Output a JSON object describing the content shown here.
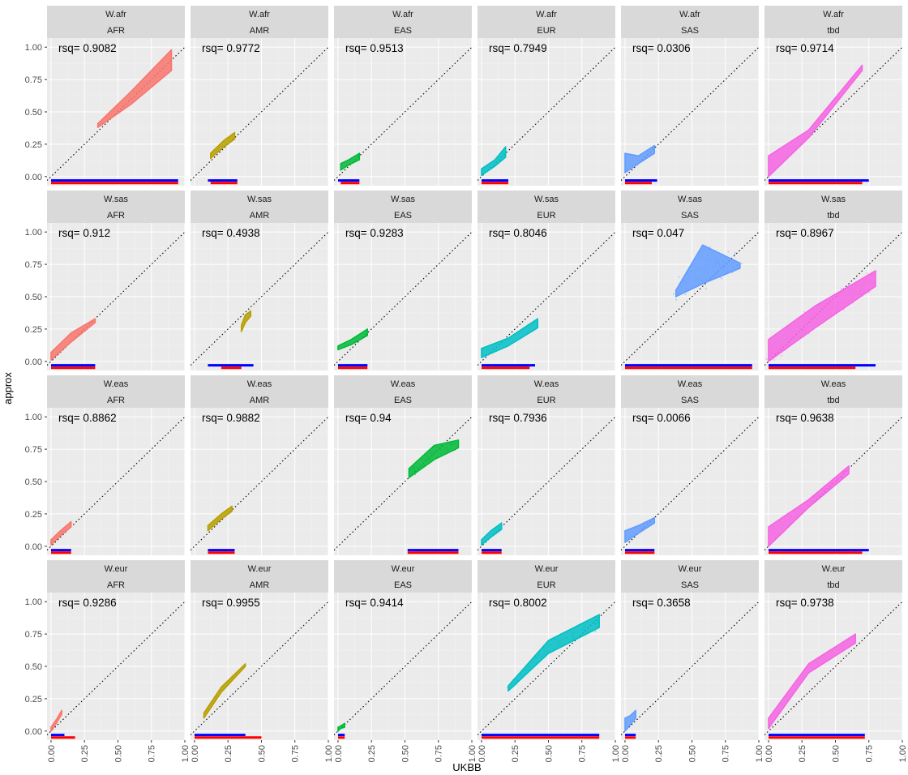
{
  "chart_data": {
    "type": "scatter",
    "facet_rows": [
      "W.afr",
      "W.sas",
      "W.eas",
      "W.eur"
    ],
    "facet_cols": [
      "AFR",
      "AMR",
      "EAS",
      "EUR",
      "SAS",
      "tbd"
    ],
    "xlabel": "UKBB",
    "ylabel": "approx",
    "xlim": [
      -0.03,
      1.0
    ],
    "ylim": [
      -0.07,
      1.07
    ],
    "x_ticks": [
      "0.00",
      "0.25",
      "0.50",
      "0.75",
      "1.00"
    ],
    "y_ticks": [
      "0.00",
      "0.25",
      "0.50",
      "0.75",
      "1.00"
    ],
    "reference_line": "y = x (dotted)",
    "grid": true,
    "colors": {
      "AFR": "#F8766D",
      "AMR": "#B79F00",
      "EAS": "#00BA38",
      "EUR": "#00BFC4",
      "SAS": "#619CFF",
      "tbd": "#F564E3",
      "blue_band": "#0000FF",
      "red_band": "#FF0000",
      "panel_bg": "#EBEBEB",
      "strip_bg": "#D9D9D9"
    },
    "panels": [
      {
        "row": "W.afr",
        "col": "AFR",
        "rsq": "rsq= 0.9082",
        "shape": [
          [
            0.35,
            0.38,
            0.41
          ],
          [
            0.6,
            0.56,
            0.66
          ],
          [
            0.9,
            0.82,
            0.98
          ]
        ],
        "blue": [
          0.0,
          0.95
        ],
        "red": [
          0.0,
          0.95
        ],
        "spread": 0.0
      },
      {
        "row": "W.afr",
        "col": "AMR",
        "rsq": "rsq= 0.9772",
        "shape": [
          [
            0.12,
            0.14,
            0.18
          ],
          [
            0.22,
            0.23,
            0.28
          ],
          [
            0.3,
            0.29,
            0.34
          ]
        ],
        "blue": [
          0.1,
          0.32
        ],
        "red": [
          0.12,
          0.32
        ],
        "spread": 0.0
      },
      {
        "row": "W.afr",
        "col": "EAS",
        "rsq": "rsq= 0.9513",
        "shape": [
          [
            0.02,
            0.05,
            0.1
          ],
          [
            0.08,
            0.09,
            0.13
          ],
          [
            0.16,
            0.13,
            0.18
          ]
        ],
        "blue": [
          0.0,
          0.16
        ],
        "red": [
          0.02,
          0.16
        ],
        "spread": 0.0
      },
      {
        "row": "W.afr",
        "col": "EUR",
        "rsq": "rsq= 0.7949",
        "shape": [
          [
            0.0,
            0.01,
            0.06
          ],
          [
            0.1,
            0.08,
            0.13
          ],
          [
            0.18,
            0.15,
            0.23
          ]
        ],
        "blue": [
          0.0,
          0.2
        ],
        "red": [
          0.0,
          0.2
        ],
        "spread": 0.0
      },
      {
        "row": "W.afr",
        "col": "SAS",
        "rsq": "rsq= 0.0306",
        "shape": [
          [
            0.0,
            0.03,
            0.18
          ],
          [
            0.1,
            0.1,
            0.16
          ],
          [
            0.22,
            0.18,
            0.24
          ]
        ],
        "blue": [
          0.0,
          0.24
        ],
        "red": [
          0.0,
          0.2
        ],
        "spread": 0.0
      },
      {
        "row": "W.afr",
        "col": "tbd",
        "rsq": "rsq= 0.9714",
        "shape": [
          [
            0.0,
            0.0,
            0.16
          ],
          [
            0.3,
            0.3,
            0.36
          ],
          [
            0.7,
            0.82,
            0.86
          ]
        ],
        "blue": [
          0.0,
          0.75
        ],
        "red": [
          0.0,
          0.7
        ],
        "spread": 0.0
      },
      {
        "row": "W.sas",
        "col": "AFR",
        "rsq": "rsq= 0.912",
        "shape": [
          [
            0.0,
            0.01,
            0.07
          ],
          [
            0.15,
            0.15,
            0.22
          ],
          [
            0.33,
            0.3,
            0.33
          ]
        ],
        "blue": [
          0.0,
          0.33
        ],
        "red": [
          0.0,
          0.33
        ],
        "spread": 0.0
      },
      {
        "row": "W.sas",
        "col": "AMR",
        "rsq": "rsq= 0.4938",
        "shape": [
          [
            0.35,
            0.23,
            0.28
          ],
          [
            0.38,
            0.3,
            0.36
          ],
          [
            0.42,
            0.35,
            0.39
          ]
        ],
        "blue": [
          0.1,
          0.44
        ],
        "red": [
          0.2,
          0.35
        ],
        "spread": 0.0
      },
      {
        "row": "W.sas",
        "col": "EAS",
        "rsq": "rsq= 0.9283",
        "shape": [
          [
            0.0,
            0.09,
            0.12
          ],
          [
            0.1,
            0.13,
            0.17
          ],
          [
            0.22,
            0.2,
            0.25
          ]
        ],
        "blue": [
          0.0,
          0.22
        ],
        "red": [
          0.0,
          0.22
        ],
        "spread": 0.0
      },
      {
        "row": "W.sas",
        "col": "EUR",
        "rsq": "rsq= 0.8046",
        "shape": [
          [
            0.0,
            0.03,
            0.1
          ],
          [
            0.2,
            0.12,
            0.18
          ],
          [
            0.42,
            0.26,
            0.33
          ]
        ],
        "blue": [
          0.0,
          0.4
        ],
        "red": [
          0.0,
          0.36
        ],
        "spread": 0.0
      },
      {
        "row": "W.sas",
        "col": "SAS",
        "rsq": "rsq= 0.047",
        "shape": [
          [
            0.38,
            0.5,
            0.55
          ],
          [
            0.58,
            0.6,
            0.9
          ],
          [
            0.86,
            0.72,
            0.76
          ]
        ],
        "blue": [
          0.0,
          0.95
        ],
        "red": [
          0.0,
          0.95
        ],
        "spread": 0.06
      },
      {
        "row": "W.sas",
        "col": "tbd",
        "rsq": "rsq= 0.8967",
        "shape": [
          [
            0.0,
            0.0,
            0.17
          ],
          [
            0.35,
            0.26,
            0.43
          ],
          [
            0.8,
            0.58,
            0.7
          ]
        ],
        "blue": [
          0.0,
          0.8
        ],
        "red": [
          0.0,
          0.65
        ],
        "spread": 0.03
      },
      {
        "row": "W.eas",
        "col": "AFR",
        "rsq": "rsq= 0.8862",
        "shape": [
          [
            0.0,
            0.01,
            0.05
          ],
          [
            0.07,
            0.08,
            0.12
          ],
          [
            0.15,
            0.15,
            0.19
          ]
        ],
        "blue": [
          0.0,
          0.15
        ],
        "red": [
          0.0,
          0.15
        ],
        "spread": 0.0
      },
      {
        "row": "W.eas",
        "col": "AMR",
        "rsq": "rsq= 0.9882",
        "shape": [
          [
            0.1,
            0.12,
            0.16
          ],
          [
            0.2,
            0.21,
            0.25
          ],
          [
            0.28,
            0.27,
            0.31
          ]
        ],
        "blue": [
          0.1,
          0.3
        ],
        "red": [
          0.1,
          0.3
        ],
        "spread": 0.0
      },
      {
        "row": "W.eas",
        "col": "EAS",
        "rsq": "rsq= 0.94",
        "shape": [
          [
            0.53,
            0.53,
            0.6
          ],
          [
            0.72,
            0.67,
            0.78
          ],
          [
            0.9,
            0.76,
            0.82
          ]
        ],
        "blue": [
          0.52,
          0.9
        ],
        "red": [
          0.52,
          0.9
        ],
        "spread": 0.02
      },
      {
        "row": "W.eas",
        "col": "EUR",
        "rsq": "rsq= 0.7936",
        "shape": [
          [
            0.0,
            0.01,
            0.05
          ],
          [
            0.07,
            0.07,
            0.12
          ],
          [
            0.15,
            0.13,
            0.18
          ]
        ],
        "blue": [
          0.0,
          0.15
        ],
        "red": [
          0.0,
          0.15
        ],
        "spread": 0.0
      },
      {
        "row": "W.eas",
        "col": "SAS",
        "rsq": "rsq= 0.0066",
        "shape": [
          [
            0.0,
            0.03,
            0.12
          ],
          [
            0.1,
            0.1,
            0.16
          ],
          [
            0.22,
            0.18,
            0.22
          ]
        ],
        "blue": [
          0.0,
          0.22
        ],
        "red": [
          0.0,
          0.22
        ],
        "spread": 0.0
      },
      {
        "row": "W.eas",
        "col": "tbd",
        "rsq": "rsq= 0.9638",
        "shape": [
          [
            0.0,
            0.0,
            0.15
          ],
          [
            0.3,
            0.3,
            0.36
          ],
          [
            0.6,
            0.56,
            0.62
          ]
        ],
        "blue": [
          0.0,
          0.75
        ],
        "red": [
          0.0,
          0.7
        ],
        "spread": 0.01
      },
      {
        "row": "W.eur",
        "col": "AFR",
        "rsq": "rsq= 0.9286",
        "shape": [
          [
            0.0,
            0.0,
            0.03
          ],
          [
            0.04,
            0.06,
            0.09
          ],
          [
            0.08,
            0.13,
            0.16
          ]
        ],
        "blue": [
          0.0,
          0.1
        ],
        "red": [
          0.0,
          0.18
        ],
        "spread": 0.0
      },
      {
        "row": "W.eur",
        "col": "AMR",
        "rsq": "rsq= 0.9955",
        "shape": [
          [
            0.07,
            0.1,
            0.14
          ],
          [
            0.2,
            0.3,
            0.34
          ],
          [
            0.38,
            0.5,
            0.52
          ]
        ],
        "blue": [
          0.0,
          0.38
        ],
        "red": [
          0.0,
          0.5
        ],
        "spread": 0.0
      },
      {
        "row": "W.eur",
        "col": "EAS",
        "rsq": "rsq= 0.9414",
        "shape": [
          [
            0.0,
            0.0,
            0.03
          ],
          [
            0.02,
            0.02,
            0.04
          ],
          [
            0.05,
            0.03,
            0.06
          ]
        ],
        "blue": [
          0.0,
          0.05
        ],
        "red": [
          0.0,
          0.05
        ],
        "spread": 0.0
      },
      {
        "row": "W.eur",
        "col": "EUR",
        "rsq": "rsq= 0.8002",
        "shape": [
          [
            0.2,
            0.31,
            0.35
          ],
          [
            0.5,
            0.6,
            0.7
          ],
          [
            0.88,
            0.8,
            0.9
          ]
        ],
        "blue": [
          0.0,
          0.88
        ],
        "red": [
          0.0,
          0.88
        ],
        "spread": 0.02
      },
      {
        "row": "W.eur",
        "col": "SAS",
        "rsq": "rsq= 0.3658",
        "shape": [
          [
            0.0,
            0.0,
            0.1
          ],
          [
            0.04,
            0.05,
            0.12
          ],
          [
            0.08,
            0.1,
            0.16
          ]
        ],
        "blue": [
          0.0,
          0.08
        ],
        "red": [
          0.0,
          0.08
        ],
        "spread": 0.0
      },
      {
        "row": "W.eur",
        "col": "tbd",
        "rsq": "rsq= 0.9738",
        "shape": [
          [
            0.0,
            0.02,
            0.1
          ],
          [
            0.3,
            0.45,
            0.52
          ],
          [
            0.65,
            0.68,
            0.75
          ]
        ],
        "blue": [
          0.0,
          0.72
        ],
        "red": [
          0.0,
          0.72
        ],
        "spread": 0.0
      }
    ]
  }
}
